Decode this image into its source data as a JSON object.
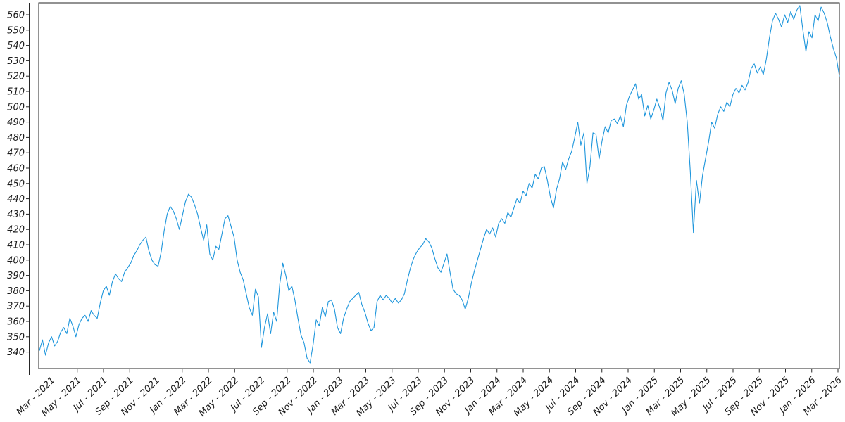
{
  "chart_data": {
    "type": "line",
    "title": "",
    "xlabel": "",
    "ylabel": "",
    "grid": false,
    "legend": false,
    "line_color": "#1e96dc",
    "axis_color": "#262626",
    "background_color": "#ffffff",
    "x_tick_labels": [
      "Mar - 2021",
      "May - 2021",
      "Jul - 2021",
      "Sep - 2021",
      "Nov - 2021",
      "Jan - 2022",
      "Mar - 2022",
      "May - 2022",
      "Jul - 2022",
      "Sep - 2022",
      "Nov - 2022",
      "Jan - 2023",
      "Mar - 2023",
      "May - 2023",
      "Jul - 2023",
      "Sep - 2023",
      "Nov - 2023",
      "Jan - 2024",
      "Mar - 2024",
      "May - 2024",
      "Jul - 2024",
      "Sep - 2024",
      "Nov - 2024",
      "Jan - 2025",
      "Mar - 2025",
      "May - 2025",
      "Jul - 2025",
      "Sep - 2025",
      "Nov - 2025",
      "Jan - 2026",
      "Mar - 2026"
    ],
    "y_tick_labels": [
      560,
      550,
      540,
      530,
      520,
      510,
      500,
      490,
      480,
      470,
      460,
      450,
      440,
      430,
      420,
      410,
      400,
      390,
      380,
      370,
      360,
      350,
      340
    ],
    "ylim": [
      329,
      568
    ],
    "series": [
      {
        "values": [
          341,
          348,
          338,
          346,
          350,
          344,
          347,
          353,
          356,
          352,
          362,
          357,
          350,
          358,
          362,
          364,
          360,
          367,
          364,
          362,
          372,
          380,
          383,
          377,
          386,
          391,
          388,
          386,
          392,
          395,
          398,
          403,
          406,
          410,
          413,
          415,
          406,
          400,
          397,
          396,
          405,
          419,
          430,
          435,
          432,
          427,
          420,
          429,
          438,
          443,
          441,
          436,
          430,
          421,
          413,
          423,
          404,
          400,
          409,
          407,
          417,
          427,
          429,
          422,
          415,
          400,
          392,
          387,
          378,
          369,
          364,
          381,
          376,
          343,
          356,
          365,
          352,
          366,
          360,
          384,
          398,
          390,
          380,
          383,
          374,
          362,
          351,
          346,
          336,
          333,
          345,
          361,
          357,
          369,
          363,
          373,
          374,
          368,
          356,
          352,
          362,
          368,
          373,
          375,
          377,
          379,
          371,
          366,
          359,
          354,
          356,
          373,
          377,
          374,
          377,
          375,
          372,
          375,
          372,
          374,
          378,
          387,
          395,
          401,
          405,
          408,
          410,
          414,
          412,
          408,
          401,
          395,
          392,
          398,
          404,
          392,
          381,
          378,
          377,
          374,
          368,
          375,
          385,
          393,
          400,
          407,
          414,
          420,
          417,
          421,
          415,
          424,
          427,
          424,
          431,
          428,
          434,
          440,
          437,
          445,
          442,
          450,
          447,
          456,
          453,
          460,
          461,
          452,
          441,
          434,
          446,
          453,
          464,
          459,
          466,
          471,
          480,
          490,
          475,
          483,
          450,
          461,
          483,
          482,
          466,
          478,
          487,
          483,
          491,
          492,
          489,
          494,
          487,
          501,
          507,
          511,
          515,
          505,
          508,
          494,
          501,
          492,
          498,
          505,
          499,
          491,
          509,
          516,
          511,
          502,
          512,
          517,
          508,
          490,
          458,
          418,
          452,
          437,
          455,
          466,
          477,
          490,
          486,
          495,
          500,
          497,
          503,
          500,
          508,
          512,
          509,
          514,
          511,
          516,
          525,
          528,
          522,
          526,
          521,
          531,
          545,
          556,
          561,
          557,
          552,
          560,
          555,
          562,
          557,
          563,
          566,
          550,
          536,
          549,
          545,
          560,
          556,
          565,
          561,
          555,
          546,
          538,
          532,
          520
        ]
      }
    ]
  }
}
